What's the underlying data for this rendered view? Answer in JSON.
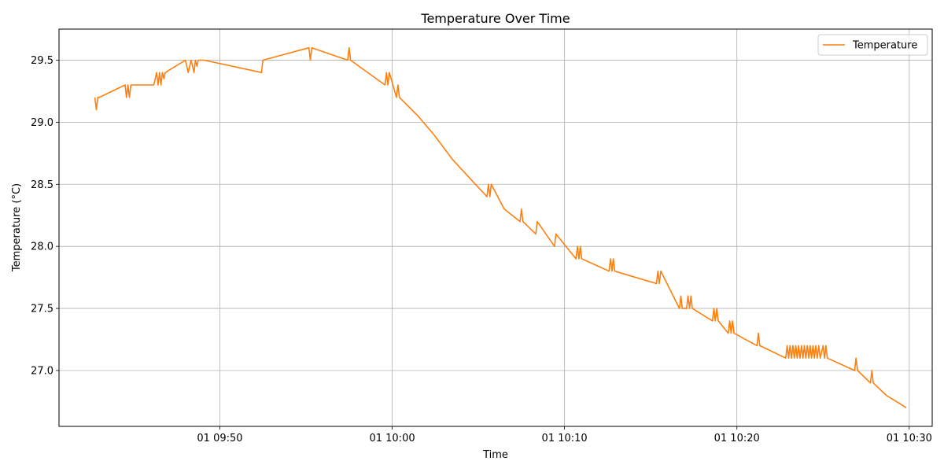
{
  "chart_data": {
    "type": "line",
    "title": "Temperature Over Time",
    "xlabel": "Time",
    "ylabel": "Temperature (°C)",
    "x_ticks": [
      "01 09:50",
      "01 10:00",
      "01 10:10",
      "01 10:20",
      "01 10:30"
    ],
    "y_ticks": [
      "27.0",
      "27.5",
      "28.0",
      "28.5",
      "29.0",
      "29.5"
    ],
    "xlim": [
      "09:40:40",
      "10:31:20"
    ],
    "ylim": [
      26.55,
      29.75
    ],
    "grid": true,
    "legend_position": "top-right",
    "series": [
      {
        "name": "Temperature",
        "color": "#ff7f0e",
        "x": [
          "09:42:45",
          "09:42:50",
          "09:42:55",
          "09:43:00",
          "09:44:30",
          "09:44:35",
          "09:44:40",
          "09:44:45",
          "09:44:50",
          "09:44:55",
          "09:46:10",
          "09:46:15",
          "09:46:20",
          "09:46:25",
          "09:46:30",
          "09:46:35",
          "09:46:40",
          "09:46:45",
          "09:46:50",
          "09:48:00",
          "09:48:05",
          "09:48:10",
          "09:48:15",
          "09:48:20",
          "09:48:25",
          "09:48:30",
          "09:48:35",
          "09:48:40",
          "09:48:45",
          "09:49:00",
          "09:49:05",
          "09:52:25",
          "09:52:30",
          "09:55:10",
          "09:55:15",
          "09:55:20",
          "09:57:25",
          "09:57:30",
          "09:57:35",
          "09:59:35",
          "09:59:40",
          "09:59:45",
          "09:59:50",
          "10:00:15",
          "10:00:20",
          "10:00:25",
          "10:01:30",
          "10:02:25",
          "10:03:30",
          "10:04:30",
          "10:05:30",
          "10:05:35",
          "10:05:40",
          "10:05:45",
          "10:06:30",
          "10:07:25",
          "10:07:30",
          "10:07:35",
          "10:08:20",
          "10:08:25",
          "10:09:25",
          "10:09:30",
          "10:10:40",
          "10:10:45",
          "10:10:50",
          "10:10:55",
          "10:11:00",
          "10:12:35",
          "10:12:40",
          "10:12:45",
          "10:12:50",
          "10:12:55",
          "10:15:20",
          "10:15:25",
          "10:15:30",
          "10:15:35",
          "10:16:40",
          "10:16:45",
          "10:16:50",
          "10:17:05",
          "10:17:10",
          "10:17:15",
          "10:17:20",
          "10:17:25",
          "10:18:35",
          "10:18:40",
          "10:18:45",
          "10:18:50",
          "10:18:55",
          "10:19:30",
          "10:19:35",
          "10:19:40",
          "10:19:45",
          "10:19:50",
          "10:21:10",
          "10:21:15",
          "10:21:20",
          "10:22:50",
          "10:22:55",
          "10:23:00",
          "10:23:05",
          "10:23:10",
          "10:23:15",
          "10:23:20",
          "10:23:25",
          "10:23:30",
          "10:23:35",
          "10:23:40",
          "10:23:45",
          "10:23:50",
          "10:23:55",
          "10:24:00",
          "10:24:05",
          "10:24:10",
          "10:24:15",
          "10:24:20",
          "10:24:25",
          "10:24:30",
          "10:24:35",
          "10:24:40",
          "10:24:45",
          "10:24:50",
          "10:25:00",
          "10:25:05",
          "10:25:10",
          "10:25:15",
          "10:26:50",
          "10:26:55",
          "10:27:00",
          "10:27:45",
          "10:27:50",
          "10:27:55",
          "10:28:40",
          "10:29:50"
        ],
        "values": [
          29.2,
          29.1,
          29.2,
          29.2,
          29.3,
          29.2,
          29.3,
          29.2,
          29.3,
          29.3,
          29.3,
          29.35,
          29.4,
          29.3,
          29.4,
          29.3,
          29.4,
          29.35,
          29.4,
          29.5,
          29.45,
          29.4,
          29.45,
          29.5,
          29.45,
          29.4,
          29.5,
          29.45,
          29.5,
          29.5,
          29.5,
          29.4,
          29.5,
          29.6,
          29.5,
          29.6,
          29.5,
          29.6,
          29.5,
          29.3,
          29.4,
          29.3,
          29.4,
          29.2,
          29.3,
          29.2,
          29.05,
          28.9,
          28.7,
          28.55,
          28.4,
          28.5,
          28.4,
          28.5,
          28.3,
          28.2,
          28.3,
          28.2,
          28.1,
          28.2,
          28.0,
          28.1,
          27.9,
          28.0,
          27.9,
          28.0,
          27.9,
          27.8,
          27.9,
          27.8,
          27.9,
          27.8,
          27.7,
          27.8,
          27.7,
          27.8,
          27.5,
          27.6,
          27.5,
          27.5,
          27.6,
          27.5,
          27.6,
          27.5,
          27.4,
          27.5,
          27.4,
          27.5,
          27.4,
          27.3,
          27.4,
          27.3,
          27.4,
          27.3,
          27.2,
          27.3,
          27.2,
          27.1,
          27.2,
          27.1,
          27.2,
          27.1,
          27.2,
          27.1,
          27.2,
          27.1,
          27.2,
          27.1,
          27.2,
          27.1,
          27.2,
          27.1,
          27.2,
          27.1,
          27.2,
          27.1,
          27.2,
          27.1,
          27.2,
          27.1,
          27.2,
          27.1,
          27.2,
          27.1,
          27.2,
          27.1,
          27.0,
          27.1,
          27.0,
          26.9,
          27.0,
          26.9,
          26.8,
          26.7
        ]
      }
    ]
  }
}
